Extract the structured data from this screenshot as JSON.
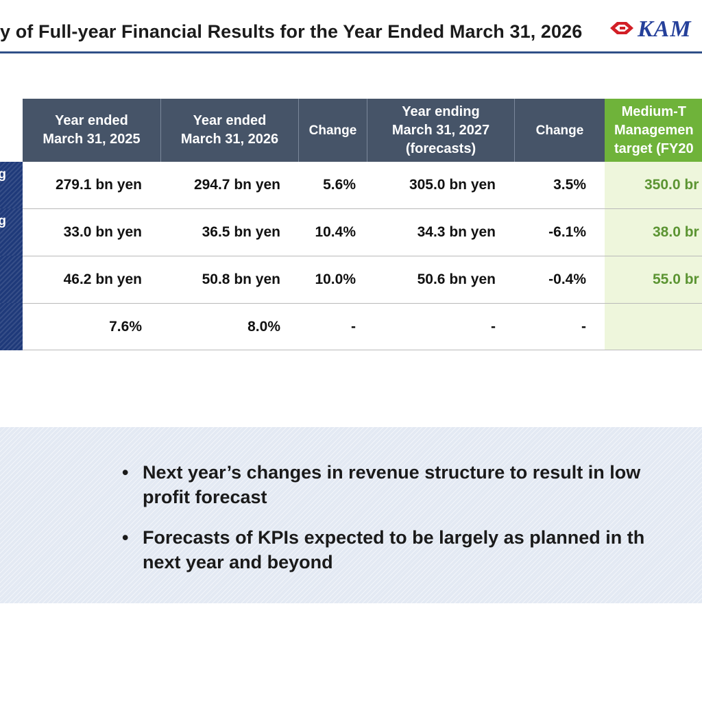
{
  "slide": {
    "title": "y of Full-year Financial Results for the Year Ended March 31, 2026",
    "logo_text": "KAM"
  },
  "table": {
    "headers": {
      "fy2025": "Year ended\nMarch 31, 2025",
      "fy2026": "Year ended\nMarch 31, 2026",
      "change1": "Change",
      "fy2027": "Year ending\nMarch 31, 2027\n(forecasts)",
      "change2": "Change",
      "target": "Medium-T\nManagemen\ntarget (FY20"
    },
    "rows": [
      {
        "label": "g",
        "fy2025": "279.1 bn yen",
        "fy2026": "294.7 bn yen",
        "change1": "5.6%",
        "fy2027": "305.0 bn yen",
        "change2": "3.5%",
        "target": "350.0 br"
      },
      {
        "label": "g",
        "fy2025": "33.0 bn yen",
        "fy2026": "36.5 bn yen",
        "change1": "10.4%",
        "fy2027": "34.3 bn yen",
        "change2": "-6.1%",
        "target": "38.0 br"
      },
      {
        "label": "",
        "fy2025": "46.2 bn yen",
        "fy2026": "50.8 bn yen",
        "change1": "10.0%",
        "fy2027": "50.6 bn yen",
        "change2": "-0.4%",
        "target": "55.0 br"
      },
      {
        "label": "",
        "fy2025": "7.6%",
        "fy2026": "8.0%",
        "change1": "-",
        "fy2027": "-",
        "change2": "-",
        "target": ""
      }
    ]
  },
  "summary": {
    "bullets": [
      "Next year’s changes in revenue structure to result in low\nprofit forecast",
      "Forecasts of KPIs expected to be largely as planned in th\nnext year and beyond"
    ],
    "bullet_symbol": "•"
  },
  "colors": {
    "header_bg": "#465468",
    "target_header_bg": "#6fb33a",
    "target_text": "#5b9432",
    "title_rule": "#2f4f88",
    "label_bg": "#1f3a7a"
  }
}
